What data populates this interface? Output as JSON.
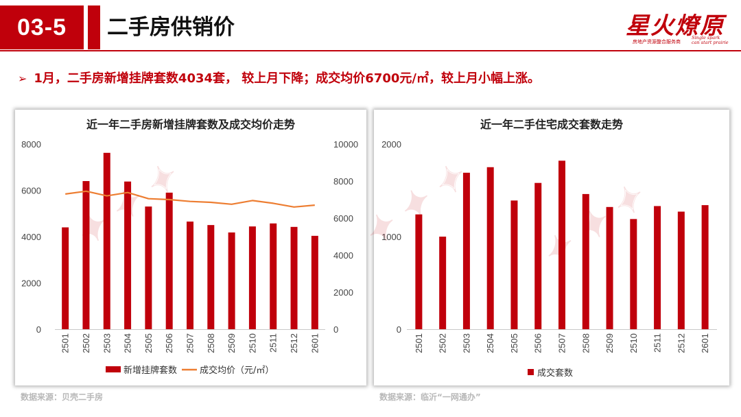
{
  "header": {
    "section_number": "03-5",
    "title": "二手房供销价",
    "logo": {
      "name": "星火燎原",
      "subtitle": "房地产资源整合服务商",
      "slogan_line1": "Single spark",
      "slogan_line2": "can start prairie"
    }
  },
  "bullet": {
    "text": "1月，二手房新增挂牌套数4034套， 较上月下降；成交均价6700元/㎡，较上月小幅上涨。"
  },
  "colors": {
    "brand": "#c0000b",
    "bar": "#c0000b",
    "line": "#ed7d31"
  },
  "chart_data": [
    {
      "type": "bar",
      "title": "近一年二手房新增挂牌套数及成交均价走势",
      "categories": [
        "2501",
        "2502",
        "2503",
        "2504",
        "2505",
        "2506",
        "2507",
        "2508",
        "2509",
        "2510",
        "2511",
        "2512",
        "2601"
      ],
      "series": [
        {
          "name": "新增挂牌套数",
          "type": "bar",
          "axis": "left",
          "values": [
            4400,
            6400,
            7620,
            6380,
            5300,
            5900,
            4650,
            4500,
            4180,
            4440,
            4570,
            4420,
            4034
          ]
        },
        {
          "name": "成交均价（元/㎡）",
          "type": "line",
          "axis": "right",
          "values": [
            7300,
            7450,
            7200,
            7380,
            7050,
            7000,
            6900,
            6850,
            6750,
            6950,
            6800,
            6600,
            6700
          ]
        }
      ],
      "yaxis_left": {
        "min": 0,
        "max": 8000,
        "ticks": [
          "0",
          "2000",
          "4000",
          "6000",
          "8000"
        ]
      },
      "yaxis_right": {
        "min": 0,
        "max": 10000,
        "ticks": [
          "0",
          "2000",
          "4000",
          "6000",
          "8000",
          "10000"
        ]
      },
      "legend": "bottom",
      "grid": false
    },
    {
      "type": "bar",
      "title": "近一年二手住宅成交套数走势",
      "categories": [
        "2501",
        "2502",
        "2503",
        "2504",
        "2505",
        "2506",
        "2507",
        "2508",
        "2509",
        "2510",
        "2511",
        "2512",
        "2601"
      ],
      "series": [
        {
          "name": "成交套数",
          "values": [
            1240,
            1000,
            1690,
            1750,
            1390,
            1580,
            1820,
            1460,
            1320,
            1190,
            1330,
            1270,
            1340
          ]
        }
      ],
      "yaxis": {
        "min": 0,
        "max": 2000,
        "ticks": [
          "0",
          "1000",
          "2000"
        ]
      },
      "legend": "bottom",
      "grid": false
    }
  ],
  "footer": {
    "source_left": "数据来源：贝壳二手房",
    "source_right": "数据来源：临沂“一网通办”"
  }
}
